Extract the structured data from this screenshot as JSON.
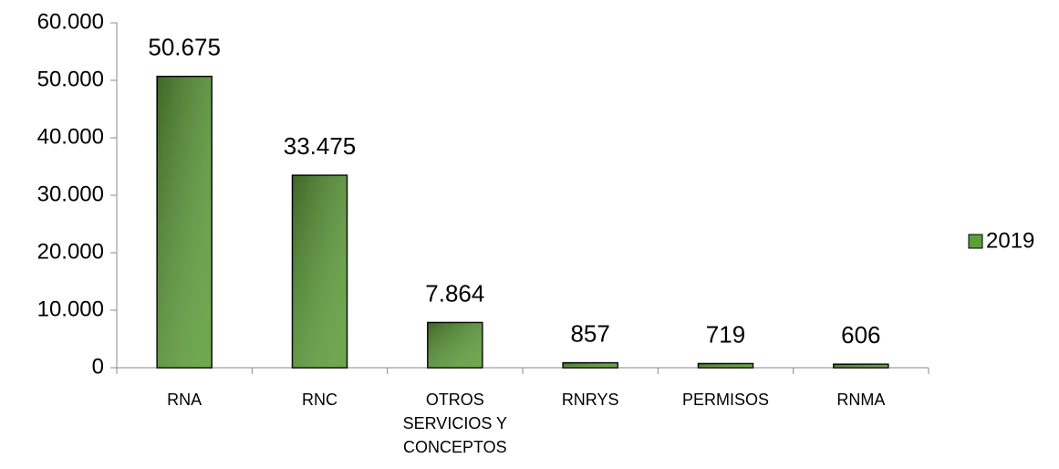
{
  "chart_data": {
    "type": "bar",
    "categories": [
      "RNA",
      "RNC",
      "OTROS SERVICIOS Y CONCEPTOS",
      "RNRYS",
      "PERMISOS",
      "RNMA"
    ],
    "series": [
      {
        "name": "2019",
        "color": "#5e9e3a",
        "values": [
          50675,
          33475,
          7864,
          857,
          719,
          606
        ],
        "value_labels": [
          "50.675",
          "33.475",
          "7.864",
          "857",
          "719",
          "606"
        ]
      }
    ],
    "ylim": [
      0,
      60000
    ],
    "yticks": [
      0,
      {
        "value": 10000,
        "label": "10.000"
      },
      {
        "value": 20000,
        "label": "20.000"
      },
      {
        "value": 30000,
        "label": "30.000"
      },
      {
        "value": 40000,
        "label": "40.000"
      },
      {
        "value": 50000,
        "label": "50.000"
      },
      {
        "value": 60000,
        "label": "60.000"
      }
    ],
    "grid": false,
    "legend": "right"
  }
}
